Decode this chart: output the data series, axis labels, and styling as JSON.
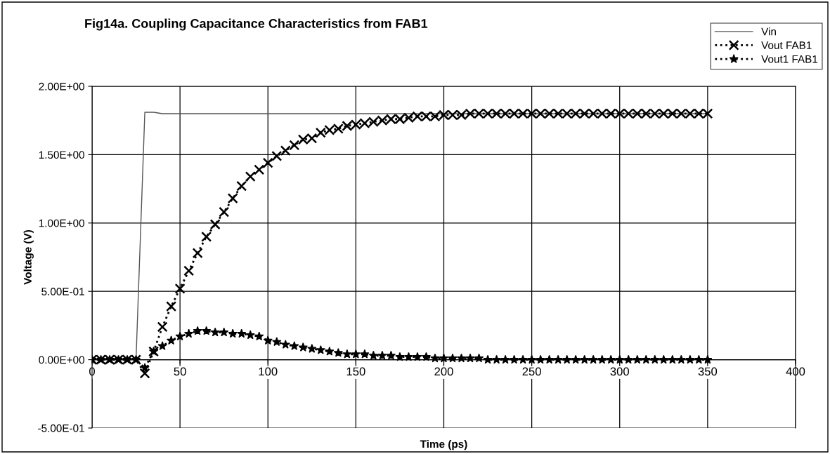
{
  "chart_data": {
    "type": "line",
    "title": "Fig14a. Coupling Capacitance Characteristics from FAB1",
    "xlabel": "Time (ps)",
    "ylabel": "Voltage (V)",
    "xlim": [
      0,
      400
    ],
    "xticks": [
      0,
      50,
      100,
      150,
      200,
      250,
      300,
      350,
      400
    ],
    "ylim": [
      -0.5,
      2.0
    ],
    "yticks": [
      {
        "value": -0.5,
        "label": "-5.00E-01"
      },
      {
        "value": 0,
        "label": "0.00E+00"
      },
      {
        "value": 0.5,
        "label": "5.00E-01"
      },
      {
        "value": 1.0,
        "label": "1.00E+00"
      },
      {
        "value": 1.5,
        "label": "1.50E+00"
      },
      {
        "value": 2.0,
        "label": "2.00E+00"
      }
    ],
    "grid": true,
    "legend": "top right",
    "series": [
      {
        "name": "Vin",
        "color": "#555555",
        "marker": "none",
        "line_style": "solid",
        "x": [
          0,
          25,
          30,
          35,
          40,
          350
        ],
        "values": [
          0,
          0,
          1.81,
          1.81,
          1.8,
          1.8
        ]
      },
      {
        "name": "Vout FAB1",
        "color": "#000000",
        "marker": "cross",
        "line_style": "dotted",
        "x": [
          0,
          5,
          10,
          15,
          20,
          25,
          30,
          35,
          40,
          45,
          50,
          55,
          60,
          65,
          70,
          75,
          80,
          85,
          90,
          95,
          100,
          105,
          110,
          115,
          120,
          125,
          130,
          135,
          140,
          145,
          150,
          155,
          160,
          165,
          170,
          175,
          180,
          185,
          190,
          195,
          200,
          205,
          210,
          215,
          220,
          225,
          230,
          235,
          240,
          245,
          250,
          255,
          260,
          265,
          270,
          275,
          280,
          285,
          290,
          295,
          300,
          305,
          310,
          315,
          320,
          325,
          330,
          335,
          340,
          345,
          350
        ],
        "values": [
          0,
          0,
          0,
          0,
          0,
          0,
          -0.1,
          0.06,
          0.24,
          0.39,
          0.52,
          0.65,
          0.78,
          0.9,
          0.99,
          1.08,
          1.18,
          1.27,
          1.34,
          1.39,
          1.44,
          1.49,
          1.53,
          1.57,
          1.61,
          1.62,
          1.66,
          1.68,
          1.69,
          1.71,
          1.72,
          1.73,
          1.74,
          1.75,
          1.76,
          1.76,
          1.77,
          1.78,
          1.78,
          1.78,
          1.79,
          1.79,
          1.79,
          1.8,
          1.8,
          1.8,
          1.8,
          1.8,
          1.8,
          1.8,
          1.8,
          1.8,
          1.8,
          1.8,
          1.8,
          1.8,
          1.8,
          1.8,
          1.8,
          1.8,
          1.8,
          1.8,
          1.8,
          1.8,
          1.8,
          1.8,
          1.8,
          1.8,
          1.8,
          1.8,
          1.8
        ]
      },
      {
        "name": "Vout1 FAB1",
        "color": "#000000",
        "marker": "star",
        "line_style": "dotted",
        "x": [
          0,
          5,
          10,
          15,
          20,
          25,
          30,
          35,
          40,
          45,
          50,
          55,
          60,
          65,
          70,
          75,
          80,
          85,
          90,
          95,
          100,
          105,
          110,
          115,
          120,
          125,
          130,
          135,
          140,
          145,
          150,
          155,
          160,
          165,
          170,
          175,
          180,
          185,
          190,
          195,
          200,
          205,
          210,
          215,
          220,
          225,
          230,
          235,
          240,
          245,
          250,
          255,
          260,
          265,
          270,
          275,
          280,
          285,
          290,
          295,
          300,
          305,
          310,
          315,
          320,
          325,
          330,
          335,
          340,
          345,
          350
        ],
        "values": [
          0,
          0,
          0,
          0,
          0,
          0,
          -0.06,
          0.06,
          0.1,
          0.14,
          0.17,
          0.19,
          0.21,
          0.21,
          0.2,
          0.2,
          0.19,
          0.19,
          0.18,
          0.17,
          0.14,
          0.13,
          0.11,
          0.1,
          0.09,
          0.08,
          0.07,
          0.06,
          0.05,
          0.04,
          0.04,
          0.04,
          0.03,
          0.03,
          0.03,
          0.02,
          0.02,
          0.02,
          0.02,
          0.01,
          0.01,
          0.01,
          0.01,
          0.01,
          0.01,
          0,
          0,
          0,
          0,
          0,
          0,
          0,
          0,
          0,
          0,
          0,
          0,
          0,
          0,
          0,
          0,
          0,
          0,
          0,
          0,
          0,
          0,
          0,
          0,
          0,
          0
        ]
      }
    ]
  }
}
